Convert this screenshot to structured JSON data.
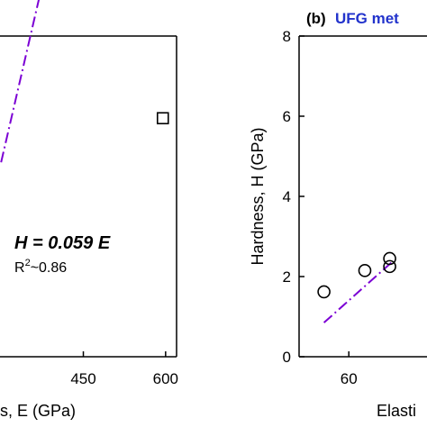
{
  "chart_data": [
    {
      "panel": "left (cropped)",
      "type": "scatter",
      "title": "",
      "xlabel": "s, E (GPa)",
      "ylabel": "",
      "x_ticks": [
        "450",
        "600"
      ],
      "xlim": [
        298,
        620
      ],
      "ylim": [
        0,
        8
      ],
      "series": [
        {
          "marker": "square",
          "points": [
            {
              "x": 595,
              "y": 5.95
            }
          ]
        }
      ],
      "fit_line": {
        "equation": "H = 0.059 E",
        "r2": "R2~0.86",
        "slope": 0.059,
        "x_range": [
          300,
          580
        ],
        "color": "#7b00d4",
        "style": "dash-dot"
      },
      "annotation": {
        "equation": "H = 0.059 E",
        "r2_prefix": "R",
        "r2_sup": "2",
        "r2_value": "~0.86"
      }
    },
    {
      "panel": "right (cropped)",
      "type": "scatter",
      "title": "(b) UFG met",
      "title_label": "(b)",
      "title_text": "UFG met",
      "title_color": "#2233cc",
      "xlabel": "Elasti",
      "ylabel": "Hardness, H (GPa)",
      "x_ticks": [
        "60"
      ],
      "y_ticks": [
        "0",
        "2",
        "4",
        "6",
        "8"
      ],
      "xlim": [
        46,
        82
      ],
      "ylim": [
        0,
        8
      ],
      "series": [
        {
          "marker": "circle",
          "points": [
            {
              "x": 53,
              "y": 1.62
            },
            {
              "x": 64.5,
              "y": 2.15
            },
            {
              "x": 71.5,
              "y": 2.25
            },
            {
              "x": 71.5,
              "y": 2.45
            }
          ]
        }
      ],
      "fit_line": {
        "x_range": [
          53,
          72
        ],
        "y_range": [
          0.85,
          2.35
        ],
        "color": "#7b00d4",
        "style": "dash-dot"
      }
    }
  ]
}
